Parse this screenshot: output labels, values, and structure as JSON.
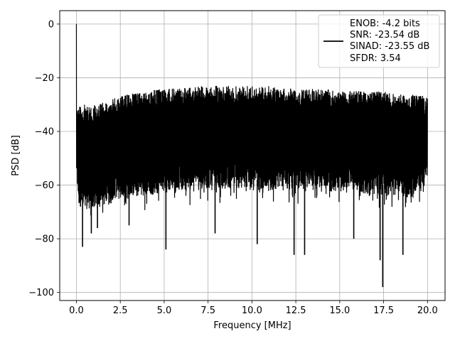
{
  "chart_data": {
    "type": "line",
    "title": "",
    "xlabel": "Frequency [MHz]",
    "ylabel": "PSD [dB]",
    "xlim": [
      -0.95,
      21.0
    ],
    "ylim": [
      -103,
      5
    ],
    "xticks": [
      0.0,
      2.5,
      5.0,
      7.5,
      10.0,
      12.5,
      15.0,
      17.5,
      20.0
    ],
    "xtick_labels": [
      "0.0",
      "2.5",
      "5.0",
      "7.5",
      "10.0",
      "12.5",
      "15.0",
      "17.5",
      "20.0"
    ],
    "yticks": [
      0,
      -20,
      -40,
      -60,
      -80,
      -100
    ],
    "ytick_labels": [
      "0",
      "−20",
      "−40",
      "−60",
      "−80",
      "−100"
    ],
    "grid": true,
    "legend_position": "top-right",
    "series": [
      {
        "name": "",
        "color": "#000000",
        "legend_lines": [
          "ENOB: -4.2 bits",
          "SNR: -23.54 dB",
          "SINAD: -23.55 dB",
          "SFDR: 3.54"
        ],
        "x_range": [
          0,
          20.0
        ],
        "peak": {
          "x": 0.0,
          "y": 0
        },
        "envelope_x": [
          0.0,
          0.1,
          0.2,
          0.5,
          1.0,
          1.5,
          2.0,
          2.5,
          3.0,
          4.0,
          5.0,
          6.0,
          7.0,
          7.5,
          8.0,
          9.0,
          10.0,
          11.0,
          12.0,
          12.5,
          13.0,
          14.0,
          15.0,
          16.0,
          17.0,
          17.5,
          18.0,
          19.0,
          20.0
        ],
        "envelope_upper": [
          -30,
          -31,
          -30,
          -30,
          -30,
          -29,
          -28,
          -27,
          -26,
          -25,
          -24,
          -24,
          -23,
          -23,
          -23,
          -23,
          -23,
          -23,
          -24,
          -24,
          -24,
          -24,
          -25,
          -25,
          -25,
          -25,
          -26,
          -26,
          -27
        ],
        "envelope_lower_typical": [
          -56,
          -66,
          -68,
          -69,
          -69,
          -68,
          -67,
          -66,
          -65,
          -64,
          -63,
          -62,
          -62,
          -62,
          -62,
          -62,
          -62,
          -62,
          -62,
          -62,
          -62,
          -62,
          -63,
          -63,
          -64,
          -64,
          -64,
          -65,
          -60
        ],
        "dips": [
          {
            "x": 0.35,
            "y": -83
          },
          {
            "x": 0.85,
            "y": -78
          },
          {
            "x": 1.2,
            "y": -76
          },
          {
            "x": 3.0,
            "y": -75
          },
          {
            "x": 5.1,
            "y": -84
          },
          {
            "x": 7.9,
            "y": -78
          },
          {
            "x": 10.3,
            "y": -82
          },
          {
            "x": 12.4,
            "y": -86
          },
          {
            "x": 13.0,
            "y": -86
          },
          {
            "x": 15.8,
            "y": -80
          },
          {
            "x": 17.3,
            "y": -88
          },
          {
            "x": 17.45,
            "y": -98
          },
          {
            "x": 18.6,
            "y": -86
          }
        ]
      }
    ]
  }
}
